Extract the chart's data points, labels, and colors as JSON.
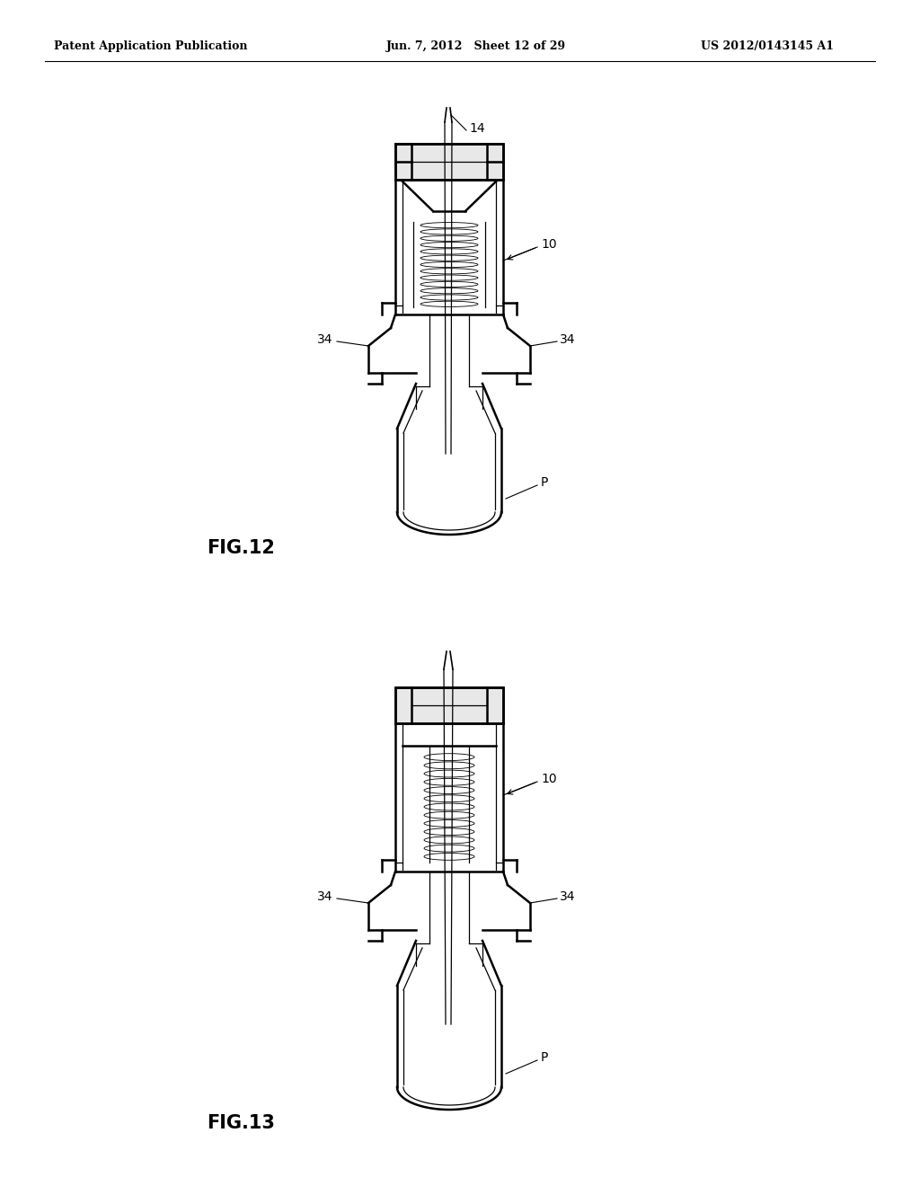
{
  "bg_color": "#ffffff",
  "header_left": "Patent Application Publication",
  "header_center": "Jun. 7, 2012   Sheet 12 of 29",
  "header_right": "US 2012/0143145 A1",
  "fig12_label": "FIG.12",
  "fig13_label": "FIG.13",
  "lw_main": 1.8,
  "lw_inner": 0.9,
  "lw_thin": 0.6
}
